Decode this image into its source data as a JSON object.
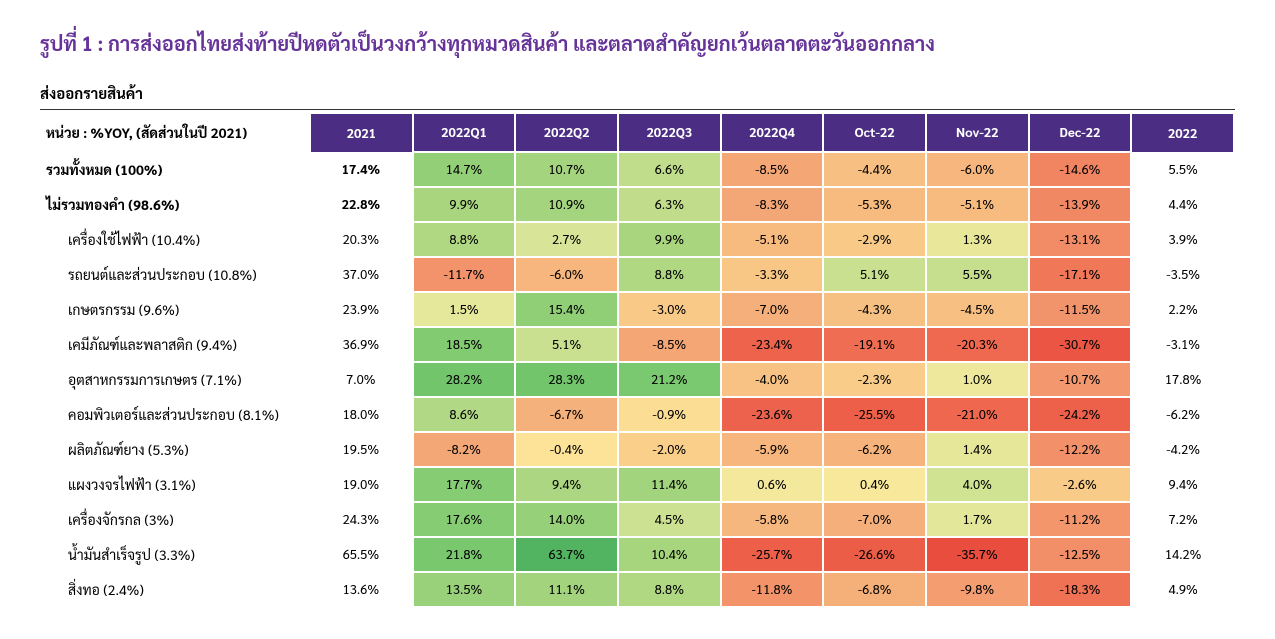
{
  "title": "รูปที่ 1 : การส่งออกไทยส่งท้ายปีหดตัวเป็นวงกว้างทุกหมวดสินค้า  และตลาดสำคัญยกเว้นตลาดตะวันออกกลาง",
  "subtitle": "ส่งออกรายสินค้า",
  "unit_label": "หน่วย : %YOY, (สัดส่วนในปี 2021)",
  "colors": {
    "header_bg": "#4b2e83",
    "header_fg": "#ffffff",
    "title_color": "#663399"
  },
  "columns": [
    "2021",
    "2022Q1",
    "2022Q2",
    "2022Q3",
    "2022Q4",
    "Oct-22",
    "Nov-22",
    "Dec-22",
    "2022"
  ],
  "heat_cols": [
    1,
    2,
    3,
    4,
    5,
    6,
    7
  ],
  "heat_scale": {
    "min": -36,
    "max": 64,
    "stops": [
      {
        "v": -36,
        "c": "#e84c3d"
      },
      {
        "v": -20,
        "c": "#ef6950"
      },
      {
        "v": -10,
        "c": "#f39c70"
      },
      {
        "v": -2,
        "c": "#f9cf8a"
      },
      {
        "v": 0,
        "c": "#fde89b"
      },
      {
        "v": 2,
        "c": "#dde79a"
      },
      {
        "v": 10,
        "c": "#a8d57f"
      },
      {
        "v": 20,
        "c": "#7bc96f"
      },
      {
        "v": 64,
        "c": "#52b460"
      }
    ]
  },
  "rows": [
    {
      "label": "รวมทั้งหมด (100%)",
      "bold": true,
      "indent": false,
      "values": [
        "17.4%",
        "14.7%",
        "10.7%",
        "6.6%",
        "-8.5%",
        "-4.4%",
        "-6.0%",
        "-14.6%",
        "5.5%"
      ],
      "nums": [
        17.4,
        14.7,
        10.7,
        6.6,
        -8.5,
        -4.4,
        -6.0,
        -14.6,
        5.5
      ]
    },
    {
      "label": "ไม่รวมทองคำ (98.6%)",
      "bold": true,
      "indent": false,
      "values": [
        "22.8%",
        "9.9%",
        "10.9%",
        "6.3%",
        "-8.3%",
        "-5.3%",
        "-5.1%",
        "-13.9%",
        "4.4%"
      ],
      "nums": [
        22.8,
        9.9,
        10.9,
        6.3,
        -8.3,
        -5.3,
        -5.1,
        -13.9,
        4.4
      ]
    },
    {
      "label": "เครื่องใช้ไฟฟ้า (10.4%)",
      "bold": false,
      "indent": true,
      "values": [
        "20.3%",
        "8.8%",
        "2.7%",
        "9.9%",
        "-5.1%",
        "-2.9%",
        "1.3%",
        "-13.1%",
        "3.9%"
      ],
      "nums": [
        20.3,
        8.8,
        2.7,
        9.9,
        -5.1,
        -2.9,
        1.3,
        -13.1,
        3.9
      ]
    },
    {
      "label": "รถยนต์และส่วนประกอบ (10.8%)",
      "bold": false,
      "indent": true,
      "values": [
        "37.0%",
        "-11.7%",
        "-6.0%",
        "8.8%",
        "-3.3%",
        "5.1%",
        "5.5%",
        "-17.1%",
        "-3.5%"
      ],
      "nums": [
        37.0,
        -11.7,
        -6.0,
        8.8,
        -3.3,
        5.1,
        5.5,
        -17.1,
        -3.5
      ]
    },
    {
      "label": "เกษตรกรรม (9.6%)",
      "bold": false,
      "indent": true,
      "values": [
        "23.9%",
        "1.5%",
        "15.4%",
        "-3.0%",
        "-7.0%",
        "-4.3%",
        "-4.5%",
        "-11.5%",
        "2.2%"
      ],
      "nums": [
        23.9,
        1.5,
        15.4,
        -3.0,
        -7.0,
        -4.3,
        -4.5,
        -11.5,
        2.2
      ]
    },
    {
      "label": "เคมีภัณฑ์และพลาสติก (9.4%)",
      "bold": false,
      "indent": true,
      "values": [
        "36.9%",
        "18.5%",
        "5.1%",
        "-8.5%",
        "-23.4%",
        "-19.1%",
        "-20.3%",
        "-30.7%",
        "-3.1%"
      ],
      "nums": [
        36.9,
        18.5,
        5.1,
        -8.5,
        -23.4,
        -19.1,
        -20.3,
        -30.7,
        -3.1
      ]
    },
    {
      "label": "อุตสาหกรรมการเกษตร (7.1%)",
      "bold": false,
      "indent": true,
      "values": [
        "7.0%",
        "28.2%",
        "28.3%",
        "21.2%",
        "-4.0%",
        "-2.3%",
        "1.0%",
        "-10.7%",
        "17.8%"
      ],
      "nums": [
        7.0,
        28.2,
        28.3,
        21.2,
        -4.0,
        -2.3,
        1.0,
        -10.7,
        17.8
      ]
    },
    {
      "label": "คอมพิวเตอร์และส่วนประกอบ (8.1%)",
      "bold": false,
      "indent": true,
      "values": [
        "18.0%",
        "8.6%",
        "-6.7%",
        "-0.9%",
        "-23.6%",
        "-25.5%",
        "-21.0%",
        "-24.2%",
        "-6.2%"
      ],
      "nums": [
        18.0,
        8.6,
        -6.7,
        -0.9,
        -23.6,
        -25.5,
        -21.0,
        -24.2,
        -6.2
      ]
    },
    {
      "label": "ผลิตภัณฑ์ยาง (5.3%)",
      "bold": false,
      "indent": true,
      "values": [
        "19.5%",
        "-8.2%",
        "-0.4%",
        "-2.0%",
        "-5.9%",
        "-6.2%",
        "1.4%",
        "-12.2%",
        "-4.2%"
      ],
      "nums": [
        19.5,
        -8.2,
        -0.4,
        -2.0,
        -5.9,
        -6.2,
        1.4,
        -12.2,
        -4.2
      ]
    },
    {
      "label": "แผงวงจรไฟฟ้า (3.1%)",
      "bold": false,
      "indent": true,
      "values": [
        "19.0%",
        "17.7%",
        "9.4%",
        "11.4%",
        "0.6%",
        "0.4%",
        "4.0%",
        "-2.6%",
        "9.4%"
      ],
      "nums": [
        19.0,
        17.7,
        9.4,
        11.4,
        0.6,
        0.4,
        4.0,
        -2.6,
        9.4
      ]
    },
    {
      "label": "เครื่องจักรกล (3%)",
      "bold": false,
      "indent": true,
      "values": [
        "24.3%",
        "17.6%",
        "14.0%",
        "4.5%",
        "-5.8%",
        "-7.0%",
        "1.7%",
        "-11.2%",
        "7.2%"
      ],
      "nums": [
        24.3,
        17.6,
        14.0,
        4.5,
        -5.8,
        -7.0,
        1.7,
        -11.2,
        7.2
      ]
    },
    {
      "label": "น้ำมันสำเร็จรูป (3.3%)",
      "bold": false,
      "indent": true,
      "values": [
        "65.5%",
        "21.8%",
        "63.7%",
        "10.4%",
        "-25.7%",
        "-26.6%",
        "-35.7%",
        "-12.5%",
        "14.2%"
      ],
      "nums": [
        65.5,
        21.8,
        63.7,
        10.4,
        -25.7,
        -26.6,
        -35.7,
        -12.5,
        14.2
      ]
    },
    {
      "label": "สิ่งทอ (2.4%)",
      "bold": false,
      "indent": true,
      "values": [
        "13.6%",
        "13.5%",
        "11.1%",
        "8.8%",
        "-11.8%",
        "-6.8%",
        "-9.8%",
        "-18.3%",
        "4.9%"
      ],
      "nums": [
        13.6,
        13.5,
        11.1,
        8.8,
        -11.8,
        -6.8,
        -9.8,
        -18.3,
        4.9
      ]
    }
  ]
}
